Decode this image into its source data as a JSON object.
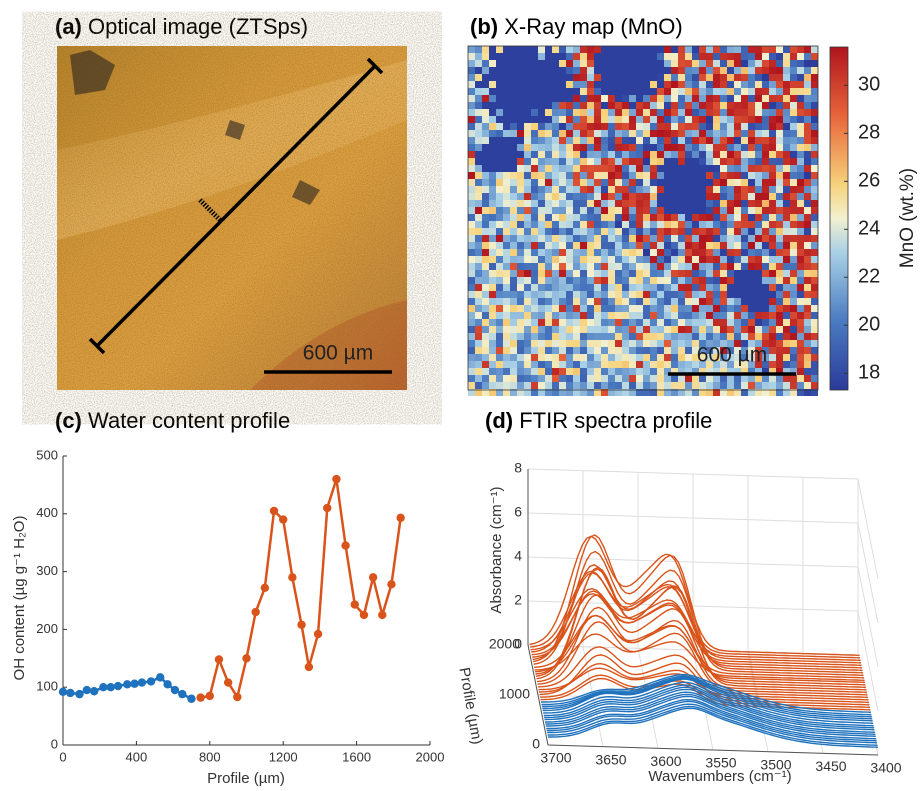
{
  "chart_data": [
    {
      "type": "image",
      "panel": "(a)",
      "title": "Optical image (ZTSps)",
      "scale_label": "600 µm"
    },
    {
      "type": "map",
      "panel": "(b)",
      "title": "X-Ray map (MnO)",
      "scale_label": "600 µm",
      "colorbar_label": "MnO (wt.%)",
      "clim": [
        17.3,
        31.6
      ],
      "cticks": [
        18,
        20,
        22,
        24,
        26,
        28,
        30
      ]
    },
    {
      "type": "line",
      "panel": "(c)",
      "title": "Water content profile",
      "xlabel": "Profile (µm)",
      "ylabel": "OH content (µg g⁻¹ H₂O)",
      "xlim": [
        0,
        2000
      ],
      "xticks": [
        0,
        400,
        800,
        1200,
        1600,
        2000
      ],
      "ylim": [
        0,
        500
      ],
      "yticks": [
        0,
        100,
        200,
        300,
        400,
        500
      ],
      "series": [
        {
          "color": "#1f72bd",
          "x": [
            0,
            40,
            90,
            130,
            170,
            220,
            260,
            300,
            350,
            390,
            430,
            480,
            530,
            570,
            610,
            650,
            700
          ],
          "values": [
            92,
            90,
            88,
            95,
            93,
            100,
            100,
            102,
            105,
            106,
            108,
            110,
            117,
            105,
            95,
            88,
            80
          ]
        },
        {
          "color": "#d9541a",
          "x": [
            750,
            800,
            850,
            900,
            950,
            1000,
            1050,
            1100,
            1150,
            1200,
            1250,
            1300,
            1340,
            1390,
            1440,
            1490,
            1540,
            1590,
            1640,
            1690,
            1740,
            1790,
            1840
          ],
          "values": [
            82,
            85,
            148,
            108,
            83,
            150,
            230,
            272,
            405,
            390,
            290,
            208,
            135,
            192,
            410,
            460,
            345,
            243,
            225,
            290,
            225,
            278,
            393
          ]
        }
      ]
    },
    {
      "type": "spectra3d",
      "panel": "(d)",
      "title": "FTIR spectra profile",
      "xlabel": "Wavenumbers (cm⁻¹)",
      "ylabel": "Profile (µm)",
      "zlabel": "Absorbance (cm⁻¹)",
      "xlim": [
        3700,
        3400
      ],
      "xticks": [
        3700,
        3650,
        3600,
        3550,
        3500,
        3450,
        3400
      ],
      "ylim": [
        0,
        2000
      ],
      "yticks": [
        0,
        1000,
        2000
      ],
      "zlim": [
        0,
        8
      ],
      "zticks": [
        0,
        2,
        4,
        6,
        8
      ],
      "colors": [
        "#1f72bd",
        "#d9541a"
      ]
    }
  ]
}
